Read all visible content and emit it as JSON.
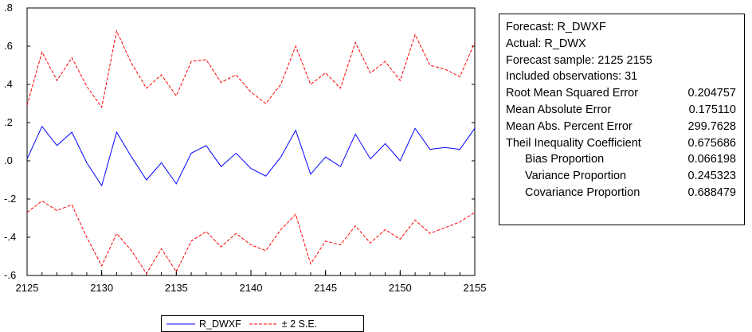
{
  "chart_data": {
    "type": "line",
    "title": "",
    "xlabel": "",
    "ylabel": "",
    "x": [
      2125,
      2126,
      2127,
      2128,
      2129,
      2130,
      2131,
      2132,
      2133,
      2134,
      2135,
      2136,
      2137,
      2138,
      2139,
      2140,
      2141,
      2142,
      2143,
      2144,
      2145,
      2146,
      2147,
      2148,
      2149,
      2150,
      2151,
      2152,
      2153,
      2154,
      2155
    ],
    "xlim": [
      2125,
      2155
    ],
    "ylim": [
      -0.6,
      0.8
    ],
    "xticks": [
      2125,
      2130,
      2135,
      2140,
      2145,
      2150,
      2155
    ],
    "xtick_labels": [
      "2125",
      "2130",
      "2135",
      "2140",
      "2145",
      "2150",
      "2155"
    ],
    "yticks": [
      -0.6,
      -0.4,
      -0.2,
      0.0,
      0.2,
      0.4,
      0.6,
      0.8
    ],
    "ytick_labels": [
      "-.6",
      "-.4",
      "-.2",
      ".0",
      ".2",
      ".4",
      ".6",
      ".8"
    ],
    "grid": false,
    "legend_position": "bottom-center",
    "series": [
      {
        "name": "R_DWXF",
        "color": "#0000ff",
        "style": "solid",
        "values": [
          0.01,
          0.18,
          0.08,
          0.15,
          -0.01,
          -0.13,
          0.15,
          0.02,
          -0.1,
          -0.01,
          -0.12,
          0.04,
          0.08,
          -0.03,
          0.04,
          -0.04,
          -0.08,
          0.02,
          0.16,
          -0.07,
          0.02,
          -0.03,
          0.14,
          0.01,
          0.09,
          0.0,
          0.17,
          0.06,
          0.07,
          0.06,
          0.17
        ]
      },
      {
        "name": "± 2 S.E.",
        "color": "#ff0000",
        "style": "dashed",
        "values": [
          0.29,
          0.57,
          0.42,
          0.54,
          0.39,
          0.28,
          0.68,
          0.51,
          0.38,
          0.45,
          0.34,
          0.52,
          0.53,
          0.41,
          0.45,
          0.36,
          0.3,
          0.4,
          0.6,
          0.4,
          0.46,
          0.38,
          0.62,
          0.46,
          0.52,
          0.42,
          0.66,
          0.5,
          0.48,
          0.44,
          0.62
        ],
        "band": "upper"
      },
      {
        "name": "",
        "color": "#ff0000",
        "style": "dashed",
        "values": [
          -0.27,
          -0.21,
          -0.26,
          -0.23,
          -0.4,
          -0.55,
          -0.38,
          -0.47,
          -0.59,
          -0.46,
          -0.58,
          -0.42,
          -0.37,
          -0.45,
          -0.38,
          -0.44,
          -0.47,
          -0.36,
          -0.28,
          -0.54,
          -0.42,
          -0.44,
          -0.34,
          -0.43,
          -0.36,
          -0.41,
          -0.31,
          -0.38,
          -0.35,
          -0.32,
          -0.27
        ],
        "band": "lower"
      }
    ]
  },
  "stats": {
    "lines": [
      "Forecast: R_DWXF",
      "Actual: R_DWX",
      "Forecast sample: 2125 2155",
      "Included observations: 31"
    ],
    "rows": [
      {
        "label": "Root Mean Squared Error",
        "value": "0.204757",
        "indent": false
      },
      {
        "label": "Mean Absolute Error",
        "value": "0.175110",
        "indent": false
      },
      {
        "label": "Mean Abs. Percent Error",
        "value": "299.7628",
        "indent": false
      },
      {
        "label": "Theil Inequality Coefficient",
        "value": "0.675686",
        "indent": false
      },
      {
        "label": "Bias Proportion",
        "value": "0.066198",
        "indent": true
      },
      {
        "label": "Variance Proportion",
        "value": "0.245323",
        "indent": true
      },
      {
        "label": "Covariance Proportion",
        "value": "0.688479",
        "indent": true
      }
    ]
  },
  "legend": {
    "items": [
      {
        "label": "R_DWXF",
        "color": "#0000ff",
        "style": "solid"
      },
      {
        "label": "± 2 S.E.",
        "color": "#ff0000",
        "style": "dashed"
      }
    ]
  }
}
